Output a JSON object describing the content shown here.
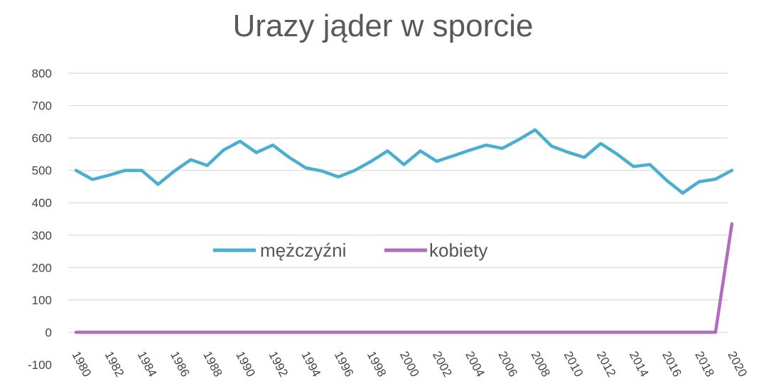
{
  "chart_data": {
    "type": "line",
    "title": "Urazy jąder w sporcie",
    "xlabel": "",
    "ylabel": "",
    "ylim": [
      -100,
      800
    ],
    "yticks": [
      800,
      700,
      600,
      500,
      400,
      300,
      200,
      100,
      0,
      -100
    ],
    "xticks": [
      "1980",
      "1982",
      "1984",
      "1986",
      "1988",
      "1990",
      "1992",
      "1994",
      "1996",
      "1998",
      "2000",
      "2002",
      "2004",
      "2006",
      "2008",
      "2010",
      "2012",
      "2014",
      "2016",
      "2018",
      "2020"
    ],
    "grid": true,
    "legend": "center",
    "colors": {
      "mezczyzni": "#4aaed0",
      "kobiety": "#b26bc2"
    },
    "x": [
      1980,
      1981,
      1982,
      1983,
      1984,
      1985,
      1986,
      1987,
      1988,
      1989,
      1990,
      1991,
      1992,
      1993,
      1994,
      1995,
      1996,
      1997,
      1998,
      1999,
      2000,
      2001,
      2002,
      2003,
      2004,
      2005,
      2006,
      2007,
      2008,
      2009,
      2010,
      2011,
      2012,
      2013,
      2014,
      2015,
      2016,
      2017,
      2018,
      2019,
      2020
    ],
    "series": [
      {
        "name": "mężczyźni",
        "values": [
          500,
          472,
          485,
          500,
          500,
          457,
          498,
          533,
          515,
          563,
          590,
          555,
          578,
          540,
          508,
          498,
          480,
          500,
          528,
          560,
          518,
          560,
          528,
          545,
          562,
          578,
          568,
          595,
          625,
          575,
          556,
          540,
          583,
          550,
          512,
          518,
          470,
          430,
          465,
          473,
          500
        ]
      },
      {
        "name": "kobiety",
        "values": [
          0,
          0,
          0,
          0,
          0,
          0,
          0,
          0,
          0,
          0,
          0,
          0,
          0,
          0,
          0,
          0,
          0,
          0,
          0,
          0,
          0,
          0,
          0,
          0,
          0,
          0,
          0,
          0,
          0,
          0,
          0,
          0,
          0,
          0,
          0,
          0,
          0,
          0,
          0,
          0,
          335
        ]
      }
    ]
  }
}
